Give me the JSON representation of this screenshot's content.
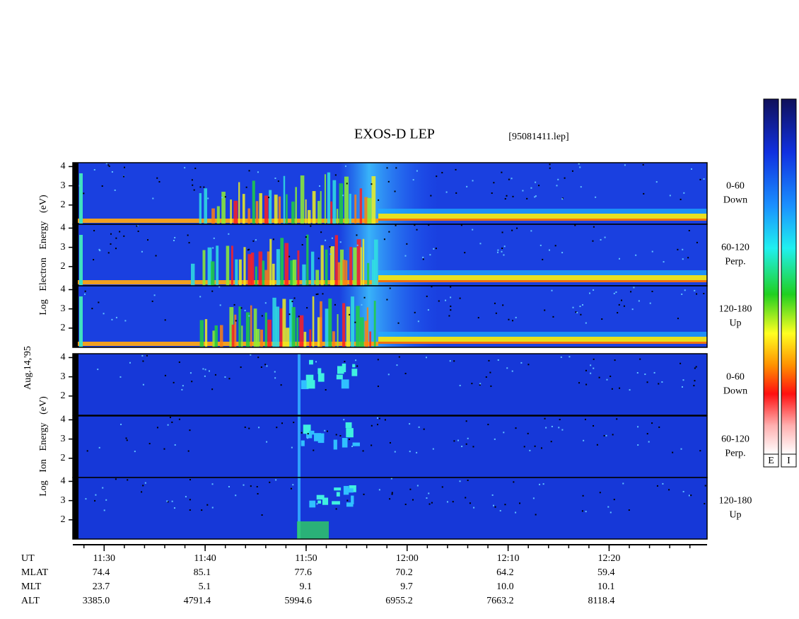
{
  "header": {
    "title": "EXOS-D LEP",
    "file": "[95081411.lep]"
  },
  "date": "Aug.14,'95",
  "groups": [
    {
      "ylabel": "Log Electron Energy (eV)",
      "panels": [
        {
          "channel": "0-60",
          "direction": "Down"
        },
        {
          "channel": "60-120",
          "direction": "Perp."
        },
        {
          "channel": "120-180",
          "direction": "Up"
        }
      ]
    },
    {
      "ylabel": "Log Ion Energy (eV)",
      "panels": [
        {
          "channel": "0-60",
          "direction": "Down"
        },
        {
          "channel": "60-120",
          "direction": "Perp."
        },
        {
          "channel": "120-180",
          "direction": "Up"
        }
      ]
    }
  ],
  "yaxis": {
    "ylim": [
      1,
      4.2
    ],
    "yticks": [
      2,
      3,
      4
    ]
  },
  "xaxis": {
    "xlim": [
      686.9,
      749.7
    ],
    "xticks": [
      {
        "value": 690,
        "label": "11:30"
      },
      {
        "value": 700,
        "label": "11:40"
      },
      {
        "value": 710,
        "label": "11:50"
      },
      {
        "value": 720,
        "label": "12:00"
      },
      {
        "value": 730,
        "label": "12:10"
      },
      {
        "value": 740,
        "label": "12:20"
      }
    ]
  },
  "ephemeris": {
    "rows": [
      {
        "name": "UT"
      },
      {
        "name": "MLAT",
        "values": [
          "74.4",
          "85.1",
          "77.6",
          "70.2",
          "64.2",
          "59.4"
        ]
      },
      {
        "name": "MLT",
        "values": [
          "23.7",
          "5.1",
          "9.1",
          "9.7",
          "10.0",
          "10.1"
        ]
      },
      {
        "name": "ALT",
        "values": [
          "3385.0",
          "4791.4",
          "5994.6",
          "6955.2",
          "7663.2",
          "8118.4"
        ]
      }
    ]
  },
  "colorbars": [
    "E",
    "I"
  ]
}
